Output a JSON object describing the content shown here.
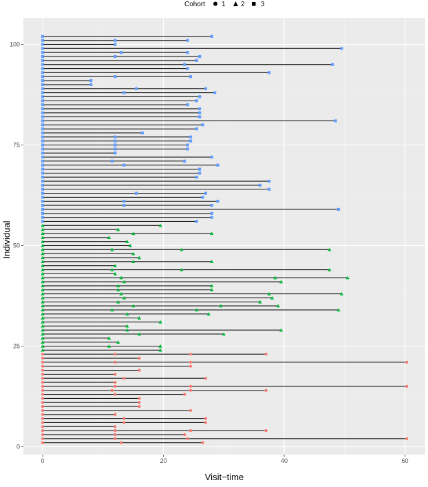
{
  "chart_data": {
    "type": "scatter",
    "subtype": "swimmer-plot",
    "title": "",
    "xlabel": "Visit−time",
    "ylabel": "Individual",
    "xlim": [
      0,
      62
    ],
    "ylim": [
      0,
      102
    ],
    "x_ticks": [
      0,
      20,
      40,
      60
    ],
    "y_ticks": [
      0,
      25,
      50,
      75,
      100
    ],
    "legend": {
      "title": "Cohort",
      "position": "top",
      "entries": [
        {
          "label": "1",
          "shape": "circle",
          "color": "#F8766D"
        },
        {
          "label": "2",
          "shape": "triangle",
          "color": "#00BA38"
        },
        {
          "label": "3",
          "shape": "square",
          "color": "#619CFF"
        }
      ]
    },
    "series": [
      {
        "name": "1",
        "color": "#F8766D",
        "shape": "circle",
        "individuals": [
          {
            "id": 1,
            "visits": [
              0,
              13,
              26.5
            ]
          },
          {
            "id": 2,
            "visits": [
              0,
              12,
              24,
              60.3
            ]
          },
          {
            "id": 3,
            "visits": [
              0,
              12,
              23.5
            ]
          },
          {
            "id": 4,
            "visits": [
              0,
              12,
              24.5,
              37
            ]
          },
          {
            "id": 5,
            "visits": [
              0,
              12
            ]
          },
          {
            "id": 6,
            "visits": [
              0,
              13.5,
              27
            ]
          },
          {
            "id": 7,
            "visits": [
              0,
              13.5,
              27
            ]
          },
          {
            "id": 8,
            "visits": [
              0,
              12
            ]
          },
          {
            "id": 9,
            "visits": [
              0,
              24.5
            ]
          },
          {
            "id": 10,
            "visits": [
              0,
              16
            ]
          },
          {
            "id": 11,
            "visits": [
              0,
              16
            ]
          },
          {
            "id": 12,
            "visits": [
              0,
              16
            ]
          },
          {
            "id": 13,
            "visits": [
              0,
              12,
              23.5
            ]
          },
          {
            "id": 14,
            "visits": [
              0,
              11.5,
              24.5,
              37
            ]
          },
          {
            "id": 15,
            "visits": [
              0,
              12,
              24.5,
              60.3
            ]
          },
          {
            "id": 16,
            "visits": [
              0,
              12
            ]
          },
          {
            "id": 17,
            "visits": [
              0,
              13.5,
              27
            ]
          },
          {
            "id": 18,
            "visits": [
              0,
              12
            ]
          },
          {
            "id": 19,
            "visits": [
              0,
              16
            ]
          },
          {
            "id": 20,
            "visits": [
              0,
              24.5
            ]
          },
          {
            "id": 21,
            "visits": [
              0,
              12,
              24.5,
              60.3
            ]
          },
          {
            "id": 22,
            "visits": [
              0,
              16
            ]
          },
          {
            "id": 23,
            "visits": [
              0,
              12,
              24.5,
              37
            ]
          }
        ]
      },
      {
        "name": "2",
        "color": "#00BA38",
        "shape": "triangle",
        "individuals": [
          {
            "id": 24,
            "visits": [
              0,
              19.5
            ]
          },
          {
            "id": 25,
            "visits": [
              0,
              11,
              19.5
            ]
          },
          {
            "id": 26,
            "visits": [
              0,
              12.5
            ]
          },
          {
            "id": 27,
            "visits": [
              0,
              11
            ]
          },
          {
            "id": 28,
            "visits": [
              0,
              16,
              30
            ]
          },
          {
            "id": 29,
            "visits": [
              0,
              14,
              39.5
            ]
          },
          {
            "id": 30,
            "visits": [
              0,
              14
            ]
          },
          {
            "id": 31,
            "visits": [
              0,
              19.5
            ]
          },
          {
            "id": 32,
            "visits": [
              0,
              16
            ]
          },
          {
            "id": 33,
            "visits": [
              0,
              14,
              27.5
            ]
          },
          {
            "id": 34,
            "visits": [
              0,
              11.5,
              25.5,
              49
            ]
          },
          {
            "id": 35,
            "visits": [
              0,
              15,
              29.5,
              39
            ]
          },
          {
            "id": 36,
            "visits": [
              0,
              12.5,
              36
            ]
          },
          {
            "id": 37,
            "visits": [
              0,
              13.5,
              38
            ]
          },
          {
            "id": 38,
            "visits": [
              0,
              13,
              37.5,
              49.5
            ]
          },
          {
            "id": 39,
            "visits": [
              0,
              12.5,
              28
            ]
          },
          {
            "id": 40,
            "visits": [
              0,
              12.5,
              28
            ]
          },
          {
            "id": 41,
            "visits": [
              0,
              13.5,
              39.5
            ]
          },
          {
            "id": 42,
            "visits": [
              0,
              13,
              38.5,
              50.5
            ]
          },
          {
            "id": 43,
            "visits": [
              0,
              12
            ]
          },
          {
            "id": 44,
            "visits": [
              0,
              11.5,
              23,
              47.5
            ]
          },
          {
            "id": 45,
            "visits": [
              0,
              12
            ]
          },
          {
            "id": 46,
            "visits": [
              0,
              15,
              28
            ]
          },
          {
            "id": 47,
            "visits": [
              0,
              16
            ]
          },
          {
            "id": 48,
            "visits": [
              0,
              15
            ]
          },
          {
            "id": 49,
            "visits": [
              0,
              11.5,
              23,
              47.5
            ]
          },
          {
            "id": 50,
            "visits": [
              0,
              14.5
            ]
          },
          {
            "id": 51,
            "visits": [
              0,
              14
            ]
          },
          {
            "id": 52,
            "visits": [
              0,
              11
            ]
          },
          {
            "id": 53,
            "visits": [
              0,
              15,
              28
            ]
          },
          {
            "id": 54,
            "visits": [
              0,
              12.5
            ]
          },
          {
            "id": 55,
            "visits": [
              0,
              19.5
            ]
          }
        ]
      },
      {
        "name": "3",
        "color": "#619CFF",
        "shape": "square",
        "individuals": [
          {
            "id": 56,
            "visits": [
              0,
              25.5
            ]
          },
          {
            "id": 57,
            "visits": [
              0,
              28
            ]
          },
          {
            "id": 58,
            "visits": [
              0,
              28
            ]
          },
          {
            "id": 59,
            "visits": [
              0,
              49
            ]
          },
          {
            "id": 60,
            "visits": [
              0,
              13.5,
              28
            ]
          },
          {
            "id": 61,
            "visits": [
              0,
              13.5,
              29
            ]
          },
          {
            "id": 62,
            "visits": [
              0,
              26.5
            ]
          },
          {
            "id": 63,
            "visits": [
              0,
              15.5,
              27
            ]
          },
          {
            "id": 64,
            "visits": [
              0,
              37.5
            ]
          },
          {
            "id": 65,
            "visits": [
              0,
              36
            ]
          },
          {
            "id": 66,
            "visits": [
              0,
              37.5
            ]
          },
          {
            "id": 67,
            "visits": [
              0,
              25.5
            ]
          },
          {
            "id": 68,
            "visits": [
              0,
              26
            ]
          },
          {
            "id": 69,
            "visits": [
              0,
              26
            ]
          },
          {
            "id": 70,
            "visits": [
              0,
              13.5,
              29
            ]
          },
          {
            "id": 71,
            "visits": [
              0,
              11.5,
              23.5
            ]
          },
          {
            "id": 72,
            "visits": [
              0,
              28
            ]
          },
          {
            "id": 73,
            "visits": [
              0,
              12
            ]
          },
          {
            "id": 74,
            "visits": [
              0,
              12,
              24
            ]
          },
          {
            "id": 75,
            "visits": [
              0,
              12,
              24
            ]
          },
          {
            "id": 76,
            "visits": [
              0,
              12,
              24.5
            ]
          },
          {
            "id": 77,
            "visits": [
              0,
              12,
              24.5
            ]
          },
          {
            "id": 78,
            "visits": [
              0,
              16.5
            ]
          },
          {
            "id": 79,
            "visits": [
              0,
              25.5
            ]
          },
          {
            "id": 80,
            "visits": [
              0,
              26.5
            ]
          },
          {
            "id": 81,
            "visits": [
              0,
              48.5
            ]
          },
          {
            "id": 82,
            "visits": [
              0,
              26
            ]
          },
          {
            "id": 83,
            "visits": [
              0,
              26
            ]
          },
          {
            "id": 84,
            "visits": [
              0,
              26
            ]
          },
          {
            "id": 85,
            "visits": [
              0,
              24
            ]
          },
          {
            "id": 86,
            "visits": [
              0,
              25.5
            ]
          },
          {
            "id": 87,
            "visits": [
              0,
              26
            ]
          },
          {
            "id": 88,
            "visits": [
              0,
              13.5,
              28.5
            ]
          },
          {
            "id": 89,
            "visits": [
              0,
              15.5,
              27
            ]
          },
          {
            "id": 90,
            "visits": [
              0,
              8
            ]
          },
          {
            "id": 91,
            "visits": [
              0,
              8
            ]
          },
          {
            "id": 92,
            "visits": [
              0,
              12,
              24.5
            ]
          },
          {
            "id": 93,
            "visits": [
              0,
              37.5
            ]
          },
          {
            "id": 94,
            "visits": [
              0,
              24
            ]
          },
          {
            "id": 95,
            "visits": [
              0,
              23.5,
              48
            ]
          },
          {
            "id": 96,
            "visits": [
              0,
              25.5
            ]
          },
          {
            "id": 97,
            "visits": [
              0,
              12,
              26
            ]
          },
          {
            "id": 98,
            "visits": [
              0,
              13,
              24
            ]
          },
          {
            "id": 99,
            "visits": [
              0,
              49.5
            ]
          },
          {
            "id": 100,
            "visits": [
              0,
              12
            ]
          },
          {
            "id": 101,
            "visits": [
              0,
              12,
              24
            ]
          },
          {
            "id": 102,
            "visits": [
              0,
              28
            ]
          }
        ]
      }
    ]
  }
}
